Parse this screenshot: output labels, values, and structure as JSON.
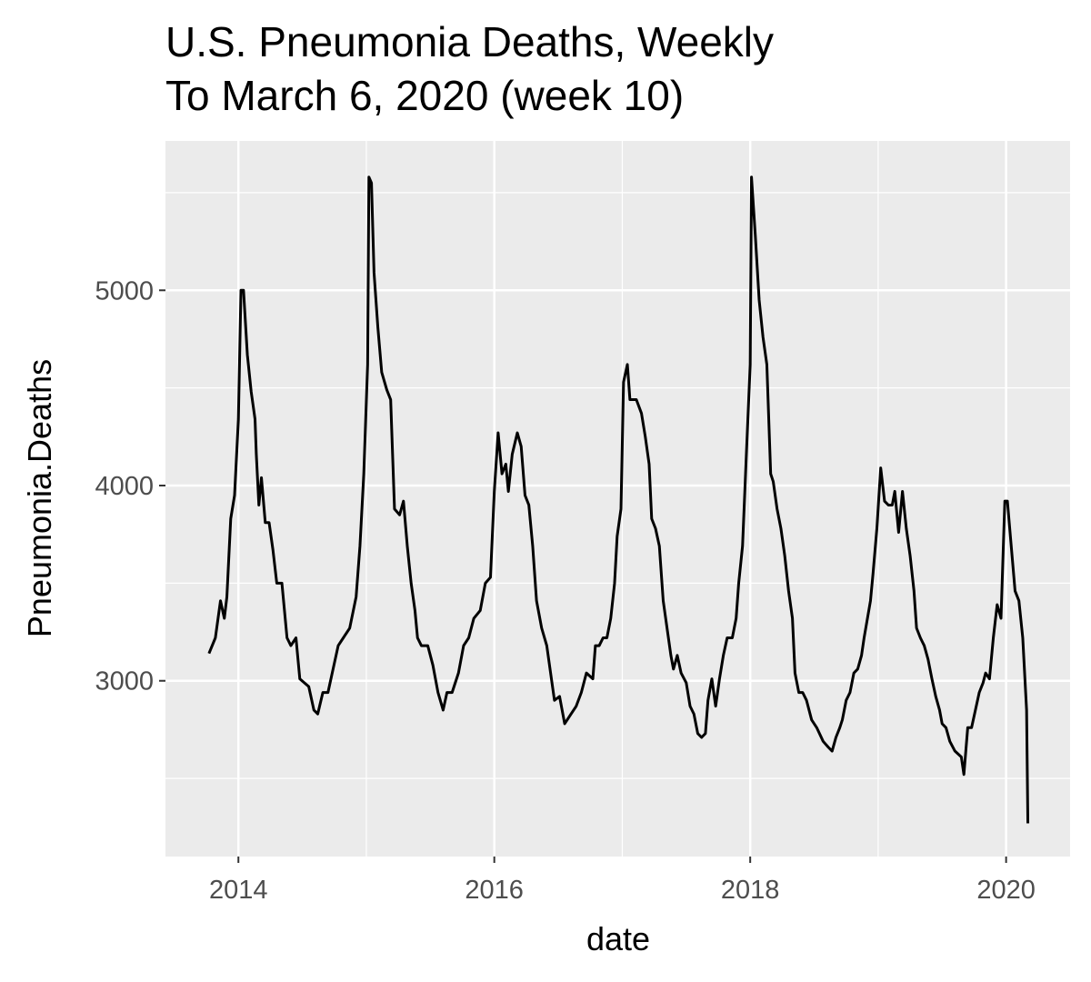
{
  "chart_data": {
    "type": "line",
    "title": [
      "U.S. Pneumonia Deaths, Weekly",
      "To March 6, 2020 (week 10)"
    ],
    "x_label": "date",
    "y_label": "Pneumonia.Deaths",
    "color": "#000000",
    "grid": true,
    "xlim": [
      2013.43,
      2020.5
    ],
    "ylim": [
      2100,
      5765
    ],
    "xticks": [
      2014,
      2016,
      2018,
      2020
    ],
    "yticks": [
      3000,
      4000,
      5000
    ],
    "xminor": [
      2015,
      2017,
      2019
    ],
    "yminor": [
      2500,
      3500,
      4500,
      5500
    ],
    "x": [
      2013.77,
      2013.82,
      2013.86,
      2013.89,
      2013.91,
      2013.94,
      2013.97,
      2014.0,
      2014.02,
      2014.04,
      2014.07,
      2014.1,
      2014.13,
      2014.14,
      2014.16,
      2014.18,
      2014.21,
      2014.24,
      2014.27,
      2014.3,
      2014.34,
      2014.38,
      2014.41,
      2014.45,
      2014.48,
      2014.55,
      2014.59,
      2014.62,
      2014.66,
      2014.7,
      2014.74,
      2014.78,
      2014.82,
      2014.87,
      2014.92,
      2014.95,
      2014.98,
      2015.01,
      2015.02,
      2015.04,
      2015.06,
      2015.09,
      2015.12,
      2015.16,
      2015.19,
      2015.22,
      2015.26,
      2015.29,
      2015.32,
      2015.35,
      2015.38,
      2015.4,
      2015.43,
      2015.48,
      2015.52,
      2015.56,
      2015.6,
      2015.63,
      2015.67,
      2015.72,
      2015.76,
      2015.8,
      2015.84,
      2015.89,
      2015.93,
      2015.97,
      2016.0,
      2016.03,
      2016.06,
      2016.09,
      2016.11,
      2016.14,
      2016.18,
      2016.21,
      2016.24,
      2016.27,
      2016.3,
      2016.33,
      2016.37,
      2016.41,
      2016.44,
      2016.47,
      2016.51,
      2016.55,
      2016.6,
      2016.64,
      2016.68,
      2016.72,
      2016.77,
      2016.79,
      2016.82,
      2016.85,
      2016.88,
      2016.91,
      2016.94,
      2016.96,
      2016.99,
      2017.01,
      2017.04,
      2017.06,
      2017.11,
      2017.15,
      2017.18,
      2017.21,
      2017.23,
      2017.26,
      2017.29,
      2017.32,
      2017.35,
      2017.38,
      2017.4,
      2017.43,
      2017.46,
      2017.5,
      2017.53,
      2017.56,
      2017.59,
      2017.62,
      2017.65,
      2017.67,
      2017.7,
      2017.73,
      2017.76,
      2017.79,
      2017.82,
      2017.86,
      2017.89,
      2017.91,
      2017.94,
      2017.97,
      2018.0,
      2018.01,
      2018.04,
      2018.07,
      2018.1,
      2018.13,
      2018.16,
      2018.18,
      2018.21,
      2018.24,
      2018.27,
      2018.3,
      2018.33,
      2018.35,
      2018.38,
      2018.41,
      2018.44,
      2018.48,
      2018.52,
      2018.57,
      2018.61,
      2018.64,
      2018.67,
      2018.7,
      2018.72,
      2018.75,
      2018.78,
      2018.81,
      2018.84,
      2018.87,
      2018.89,
      2018.94,
      2018.96,
      2018.99,
      2019.02,
      2019.05,
      2019.08,
      2019.11,
      2019.13,
      2019.16,
      2019.19,
      2019.22,
      2019.25,
      2019.28,
      2019.3,
      2019.33,
      2019.36,
      2019.39,
      2019.42,
      2019.45,
      2019.48,
      2019.5,
      2019.53,
      2019.56,
      2019.6,
      2019.65,
      2019.67,
      2019.7,
      2019.73,
      2019.76,
      2019.79,
      2019.82,
      2019.84,
      2019.87,
      2019.9,
      2019.93,
      2019.96,
      2019.99,
      2020.01,
      2020.04,
      2020.07,
      2020.1,
      2020.13,
      2020.16,
      2020.17
    ],
    "values": [
      3140,
      3220,
      3410,
      3320,
      3430,
      3830,
      3950,
      4340,
      5000,
      5000,
      4670,
      4480,
      4340,
      4160,
      3900,
      4040,
      3810,
      3810,
      3670,
      3500,
      3500,
      3220,
      3180,
      3220,
      3010,
      2970,
      2850,
      2830,
      2940,
      2940,
      3060,
      3180,
      3220,
      3270,
      3430,
      3690,
      4060,
      4620,
      5580,
      5550,
      5090,
      4810,
      4580,
      4490,
      4440,
      3880,
      3850,
      3920,
      3690,
      3500,
      3360,
      3220,
      3180,
      3180,
      3080,
      2940,
      2850,
      2940,
      2940,
      3040,
      3180,
      3220,
      3320,
      3360,
      3500,
      3530,
      3970,
      4270,
      4060,
      4110,
      3970,
      4160,
      4270,
      4200,
      3950,
      3900,
      3690,
      3410,
      3270,
      3180,
      3040,
      2900,
      2920,
      2780,
      2830,
      2870,
      2940,
      3040,
      3010,
      3180,
      3180,
      3220,
      3220,
      3320,
      3500,
      3740,
      3880,
      4530,
      4620,
      4440,
      4440,
      4370,
      4250,
      4110,
      3830,
      3780,
      3690,
      3410,
      3270,
      3130,
      3060,
      3130,
      3040,
      2990,
      2870,
      2830,
      2730,
      2710,
      2730,
      2900,
      3010,
      2870,
      3010,
      3130,
      3220,
      3220,
      3320,
      3500,
      3690,
      4160,
      4620,
      5580,
      5280,
      4950,
      4760,
      4620,
      4060,
      4020,
      3880,
      3780,
      3640,
      3460,
      3320,
      3040,
      2940,
      2940,
      2900,
      2800,
      2760,
      2690,
      2660,
      2640,
      2710,
      2760,
      2800,
      2900,
      2940,
      3040,
      3060,
      3130,
      3220,
      3410,
      3550,
      3780,
      4090,
      3920,
      3900,
      3900,
      3970,
      3760,
      3970,
      3780,
      3640,
      3460,
      3270,
      3220,
      3180,
      3110,
      3010,
      2920,
      2850,
      2780,
      2760,
      2690,
      2640,
      2610,
      2520,
      2760,
      2760,
      2850,
      2940,
      2990,
      3040,
      3010,
      3220,
      3390,
      3320,
      3920,
      3920,
      3690,
      3460,
      3410,
      3220,
      2850,
      2270
    ]
  }
}
